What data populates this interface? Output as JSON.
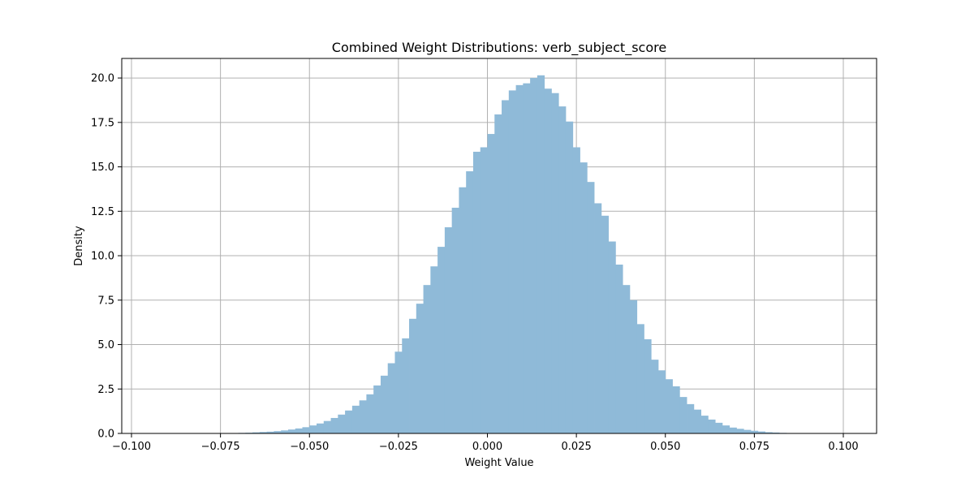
{
  "chart_data": {
    "type": "histogram",
    "title": "Combined Weight Distributions: verb_subject_score",
    "xlabel": "Weight Value",
    "ylabel": "Density",
    "xlim": [
      -0.1,
      0.1
    ],
    "ylim": [
      0,
      21.1
    ],
    "xticks": [
      -0.1,
      -0.075,
      -0.05,
      -0.025,
      0.0,
      0.025,
      0.05,
      0.075,
      0.1
    ],
    "xtick_labels": [
      "−0.100",
      "−0.075",
      "−0.050",
      "−0.025",
      "0.000",
      "0.025",
      "0.050",
      "0.075",
      "0.100"
    ],
    "yticks": [
      0,
      2.5,
      5,
      7.5,
      10,
      12.5,
      15,
      17.5,
      20
    ],
    "ytick_labels": [
      "0.0",
      "2.5",
      "5.0",
      "7.5",
      "10.0",
      "12.5",
      "15.0",
      "17.5",
      "20.0"
    ],
    "grid": true,
    "bar_color": "#8fbad8",
    "bin_start": -0.1,
    "bin_width": 0.002,
    "values": [
      0,
      0,
      0,
      0,
      0,
      0,
      0,
      0,
      0,
      0,
      0,
      0,
      0,
      0,
      0.02,
      0.03,
      0.04,
      0.06,
      0.08,
      0.1,
      0.13,
      0.17,
      0.22,
      0.28,
      0.35,
      0.45,
      0.56,
      0.7,
      0.87,
      1.06,
      1.29,
      1.56,
      1.86,
      2.2,
      2.7,
      3.25,
      3.95,
      4.6,
      5.35,
      6.45,
      7.3,
      8.35,
      9.4,
      10.5,
      11.6,
      12.7,
      13.85,
      14.75,
      15.85,
      16.1,
      16.85,
      17.95,
      18.75,
      19.3,
      19.6,
      19.7,
      20.0,
      20.15,
      19.4,
      19.15,
      18.4,
      17.55,
      16.1,
      15.25,
      14.15,
      12.95,
      12.25,
      10.8,
      9.5,
      8.35,
      7.5,
      6.15,
      5.3,
      4.15,
      3.55,
      3.05,
      2.65,
      2.05,
      1.65,
      1.34,
      1.0,
      0.78,
      0.6,
      0.45,
      0.33,
      0.26,
      0.2,
      0.15,
      0.11,
      0.07,
      0.05,
      0.03,
      0.02,
      0.01,
      0,
      0,
      0,
      0,
      0,
      0
    ]
  }
}
